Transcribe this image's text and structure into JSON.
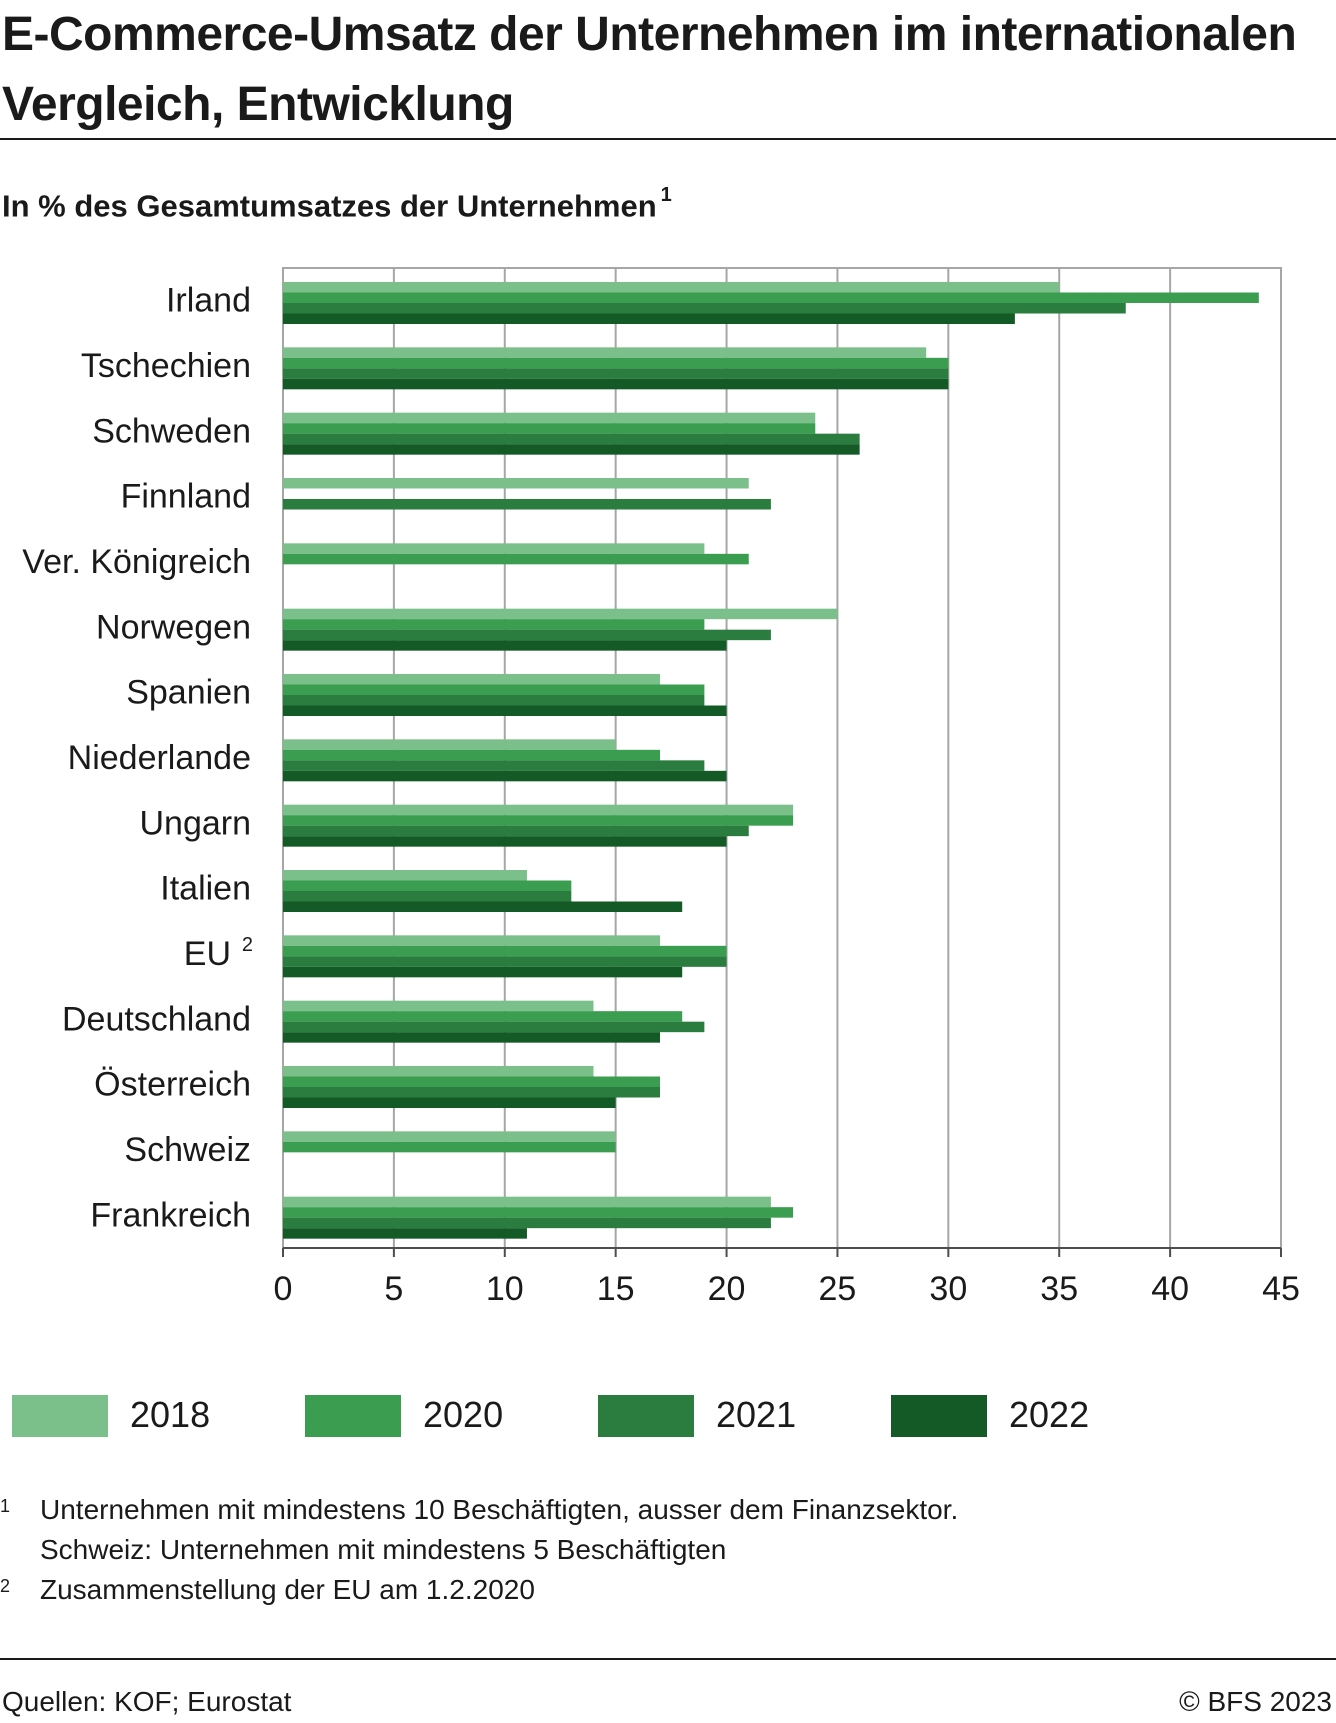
{
  "title": "E-Commerce-Umsatz der Unternehmen im internationalen Vergleich, Entwicklung",
  "subtitle": "In % des Gesamtumsatzes der Unternehmen",
  "subtitle_note": "1",
  "chart_data": {
    "type": "bar",
    "orientation": "horizontal",
    "categories": [
      "Irland",
      "Tschechien",
      "Schweden",
      "Finnland",
      "Ver. Königreich",
      "Norwegen",
      "Spanien",
      "Niederlande",
      "Ungarn",
      "Italien",
      "EU",
      "Deutschland",
      "Österreich",
      "Schweiz",
      "Frankreich"
    ],
    "category_notes": [
      "",
      "",
      "",
      "",
      "",
      "",
      "",
      "",
      "",
      "",
      "2",
      "",
      "",
      "",
      ""
    ],
    "series": [
      {
        "name": "2018",
        "color": "#7bbf8a",
        "values": [
          35,
          29,
          24,
          21,
          19,
          25,
          17,
          15,
          23,
          11,
          17,
          14,
          14,
          15,
          22
        ]
      },
      {
        "name": "2020",
        "color": "#3a9d4f",
        "values": [
          44,
          30,
          24,
          null,
          21,
          19,
          19,
          17,
          23,
          13,
          20,
          18,
          17,
          15,
          23
        ]
      },
      {
        "name": "2021",
        "color": "#2a7d3e",
        "values": [
          38,
          30,
          26,
          22,
          null,
          22,
          19,
          19,
          21,
          13,
          20,
          19,
          17,
          null,
          22
        ]
      },
      {
        "name": "2022",
        "color": "#145a27",
        "values": [
          33,
          30,
          26,
          null,
          null,
          20,
          20,
          20,
          20,
          18,
          18,
          17,
          15,
          null,
          11
        ]
      }
    ],
    "xlim": [
      0,
      45
    ],
    "xticks": [
      "0",
      "5",
      "10",
      "15",
      "20",
      "25",
      "30",
      "35",
      "40",
      "45"
    ],
    "grid": true,
    "legend_position": "bottom"
  },
  "footnotes": [
    {
      "mark": "1",
      "lines": [
        "Unternehmen mit mindestens 10 Beschäftigten, ausser dem Finanzsektor.",
        "Schweiz: Unternehmen mit mindestens 5 Beschäftigten"
      ]
    },
    {
      "mark": "2",
      "lines": [
        "Zusammenstellung der EU am 1.2.2020"
      ]
    }
  ],
  "source": "Quellen: KOF; Eurostat",
  "copyright": "© BFS 2023"
}
